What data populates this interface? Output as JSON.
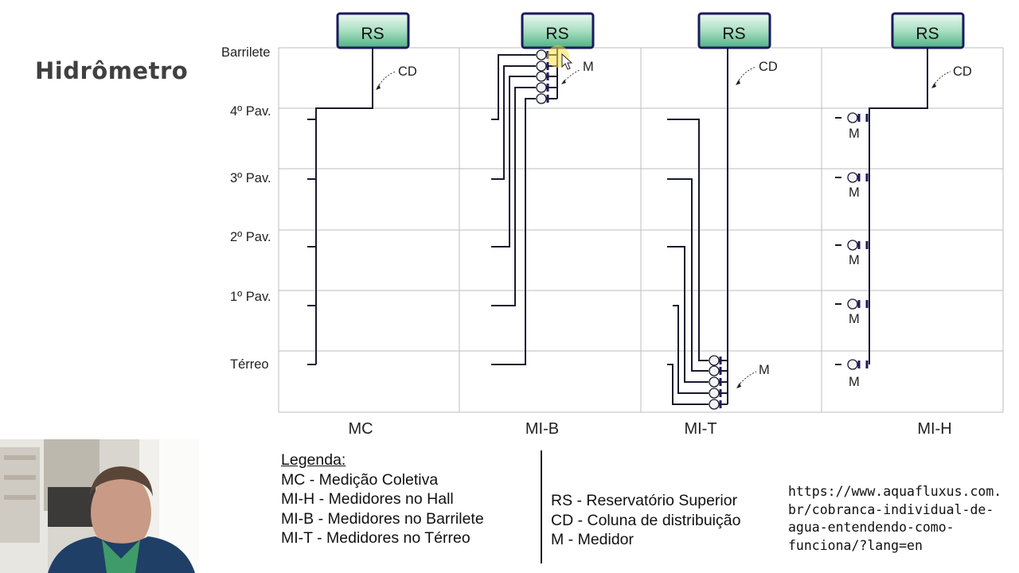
{
  "slide": {
    "title": "Hidrômetro",
    "floors": [
      "Barrilete",
      "4º Pav.",
      "3º Pav.",
      "2º Pav.",
      "1º Pav.",
      "Térreo"
    ],
    "columns": [
      "MC",
      "MI-B",
      "MI-T",
      "MI-H"
    ],
    "reservoir_label": "RS",
    "column_label": "CD",
    "meter_label": "M"
  },
  "legend": {
    "title": "Legenda:",
    "items_left": [
      "MC - Medição Coletiva",
      "MI-H - Medidores no Hall",
      "MI-B - Medidores no Barrilete",
      "MI-T - Medidores no Térreo"
    ],
    "items_right": [
      "RS - Reservatório Superior",
      "CD - Coluna de distribuição",
      "M - Medidor"
    ]
  },
  "source_url": "https://www.aquafluxus.com.\nbr/cobranca-individual-de-\nagua-entendendo-como-\nfunciona/?lang=en",
  "colors": {
    "reservoir_fill_top": "#e6f6ec",
    "reservoir_fill_bottom": "#5fbf8f",
    "reservoir_border": "#1a1a5e",
    "grid": "#bdbdbd",
    "line": "#1a1a2e",
    "cursor_highlight": "#ffe24a"
  }
}
